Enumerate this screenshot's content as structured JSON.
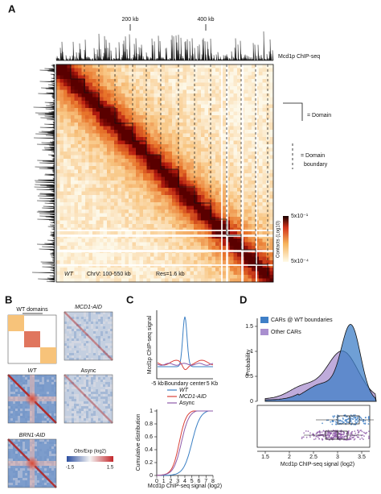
{
  "panel_a": {
    "label": "A",
    "scale_ticks": [
      "200 kb",
      "400 kb"
    ],
    "track_label": "Mcd1p ChIP-seq",
    "legend_domain": "= Domain",
    "legend_boundary": [
      "= Domain",
      "boundary"
    ],
    "colorbar_max": "5x10⁻¹",
    "colorbar_min": "5x10⁻⁴",
    "colorbar_title": "Contacts (Log10)",
    "strain": "WT",
    "region": "ChrV: 100-550 kb",
    "resolution": "Res=1.6 kb"
  },
  "panel_b": {
    "label": "B",
    "schematic_title": "WT domains",
    "maps": [
      "MCD1-AID",
      "WT",
      "Async",
      "BRN1-AID"
    ],
    "colorbar_title": "Obs/Exp (log2)",
    "colorbar_min": "-1.5",
    "colorbar_max": "1.5"
  },
  "panel_c": {
    "label": "C",
    "top_ylabel": "Mcd1p ChIP-seq signal",
    "top_xticks": [
      "-5 kb",
      "Boundary center",
      "5 Kb"
    ],
    "legend": [
      "WT",
      "MCD1-AID",
      "Async"
    ],
    "bottom_ylabel": "Cumulative distribution",
    "bottom_yticks": [
      0,
      0.2,
      0.4,
      0.6,
      0.8,
      1
    ],
    "bottom_xticks": [
      0,
      1,
      2,
      3,
      4,
      5,
      6,
      7,
      8
    ],
    "bottom_xlabel": "Mcd1p ChIP-seq signal (log2)"
  },
  "panel_d": {
    "label": "D",
    "legend": [
      "CARs @ WT boundaries",
      "Other CARs"
    ],
    "ylabel": "Probability",
    "yticks": [
      0,
      0.5,
      1,
      1.5
    ],
    "xticks": [
      1.5,
      2,
      2.5,
      3,
      3.5
    ],
    "xlabel": "Mcd1p ChIP-seq signal (log2)"
  }
}
